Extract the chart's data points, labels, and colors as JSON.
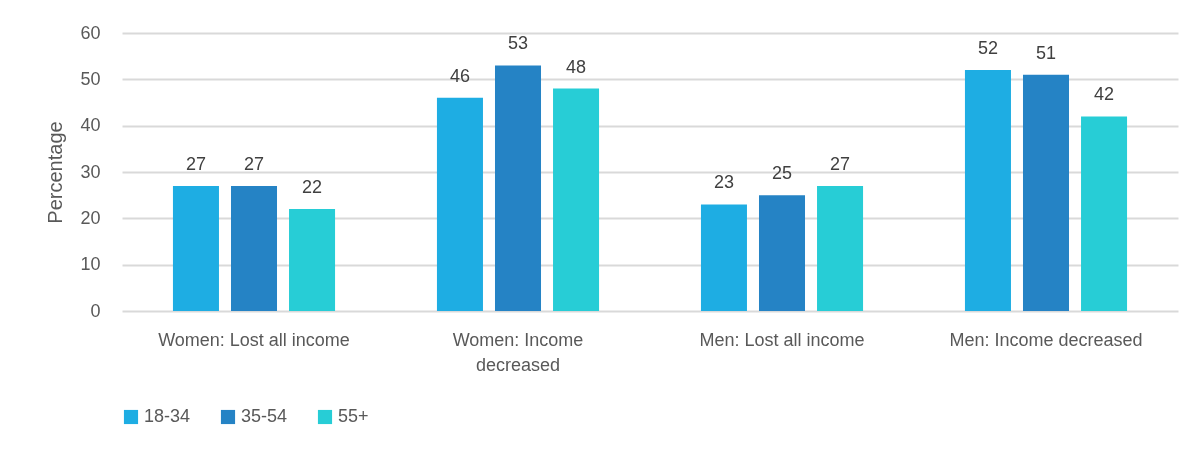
{
  "chart_data": {
    "type": "bar",
    "ylabel": "Percentage",
    "categories": [
      "Women: Lost all income",
      "Women: Income decreased",
      "Men: Lost all income",
      "Men: Income decreased"
    ],
    "series": [
      {
        "name": "18-34",
        "color": "#1eade3",
        "values": [
          27,
          46,
          23,
          52
        ]
      },
      {
        "name": "35-54",
        "color": "#2583c5",
        "values": [
          27,
          53,
          25,
          51
        ]
      },
      {
        "name": "55+",
        "color": "#27cdd6",
        "values": [
          22,
          48,
          27,
          42
        ]
      }
    ],
    "ylim": [
      0,
      60
    ],
    "yticks": [
      0,
      10,
      20,
      30,
      40,
      50,
      60
    ],
    "grid": "y",
    "legend": "bottom",
    "data_labels": true
  }
}
